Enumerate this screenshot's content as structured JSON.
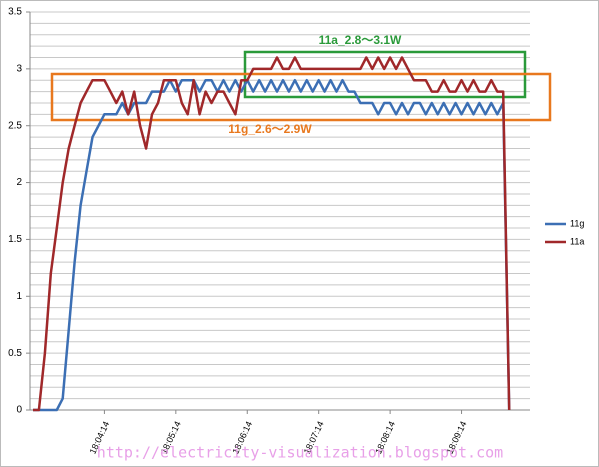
{
  "chart_data": {
    "type": "line",
    "categories": [
      null,
      null,
      null,
      null,
      null,
      null,
      null,
      null,
      null,
      null,
      null,
      null,
      "18:04:14",
      null,
      null,
      null,
      null,
      null,
      null,
      null,
      null,
      null,
      null,
      null,
      "18:05:14",
      null,
      null,
      null,
      null,
      null,
      null,
      null,
      null,
      null,
      null,
      null,
      "18:06:14",
      null,
      null,
      null,
      null,
      null,
      null,
      null,
      null,
      null,
      null,
      null,
      "18:07:14",
      null,
      null,
      null,
      null,
      null,
      null,
      null,
      null,
      null,
      null,
      null,
      "18:08:14",
      null,
      null,
      null,
      null,
      null,
      null,
      null,
      null,
      null,
      null,
      null,
      "18:09:14",
      null,
      null,
      null,
      null,
      null,
      null,
      null,
      null,
      null,
      null,
      null
    ],
    "series": [
      {
        "name": "11g",
        "color": "#3c6fb4",
        "values": [
          0,
          0,
          0,
          0,
          0,
          0.1,
          0.7,
          1.3,
          1.8,
          2.1,
          2.4,
          2.5,
          2.6,
          2.6,
          2.6,
          2.7,
          2.6,
          2.7,
          2.7,
          2.7,
          2.8,
          2.8,
          2.8,
          2.9,
          2.8,
          2.9,
          2.9,
          2.9,
          2.8,
          2.9,
          2.9,
          2.8,
          2.9,
          2.8,
          2.9,
          2.8,
          2.9,
          2.8,
          2.9,
          2.8,
          2.9,
          2.8,
          2.9,
          2.8,
          2.9,
          2.8,
          2.9,
          2.8,
          2.9,
          2.8,
          2.9,
          2.8,
          2.9,
          2.8,
          2.8,
          2.7,
          2.7,
          2.7,
          2.6,
          2.7,
          2.7,
          2.6,
          2.7,
          2.6,
          2.7,
          2.7,
          2.6,
          2.7,
          2.6,
          2.7,
          2.6,
          2.7,
          2.6,
          2.7,
          2.6,
          2.7,
          2.6,
          2.7,
          2.6,
          2.7,
          0,
          null,
          null,
          null
        ]
      },
      {
        "name": "11a",
        "color": "#a0282a",
        "values": [
          0,
          0,
          0.5,
          1.2,
          1.6,
          2.0,
          2.3,
          2.5,
          2.7,
          2.8,
          2.9,
          2.9,
          2.9,
          2.8,
          2.7,
          2.8,
          2.6,
          2.8,
          2.5,
          2.3,
          2.6,
          2.7,
          2.9,
          2.9,
          2.9,
          2.7,
          2.6,
          2.9,
          2.6,
          2.8,
          2.7,
          2.8,
          2.8,
          2.7,
          2.6,
          2.9,
          2.9,
          3.0,
          3.0,
          3.0,
          3.0,
          3.1,
          3.0,
          3.0,
          3.1,
          3.0,
          3.0,
          3.0,
          3.0,
          3.0,
          3.0,
          3.0,
          3.0,
          3.0,
          3.0,
          3.0,
          3.1,
          3.0,
          3.1,
          3.0,
          3.1,
          3.0,
          3.1,
          3.0,
          2.9,
          2.9,
          2.9,
          2.8,
          2.8,
          2.9,
          2.8,
          2.8,
          2.9,
          2.8,
          2.9,
          2.8,
          2.8,
          2.9,
          2.8,
          2.8,
          0,
          null,
          null,
          null
        ]
      }
    ],
    "ylim": [
      0,
      3.5
    ],
    "yticks": [
      0,
      0.5,
      1,
      1.5,
      2,
      2.5,
      3,
      3.5
    ],
    "y_gridlines": [
      0.1,
      0.2,
      0.3,
      0.4,
      0.5,
      0.6,
      0.7,
      0.8,
      0.9,
      1,
      1.1,
      1.2,
      1.3,
      1.4,
      1.5,
      1.6,
      1.7,
      1.8,
      1.9,
      2,
      2.1,
      2.2,
      2.3,
      2.4,
      2.5,
      2.6,
      2.7,
      2.8,
      2.9,
      3,
      3.1,
      3.2,
      3.3,
      3.4,
      3.5
    ],
    "grid": true,
    "legend": "right",
    "annotations": [
      {
        "text": "11a_2.8〜3.1W",
        "color": "#2a9a3a"
      },
      {
        "text": "11g_2.6〜2.9W",
        "color": "#e8781e"
      }
    ],
    "watermark": "http://electricity-visualization.blogspot.com"
  }
}
